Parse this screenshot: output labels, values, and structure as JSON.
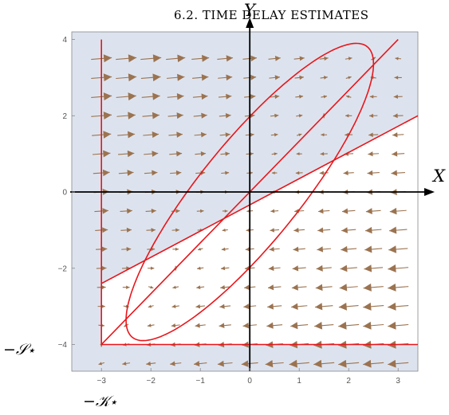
{
  "header": {
    "running_head": "6.2. TIME DELAY ESTIMATES"
  },
  "axes": {
    "x_label": "X",
    "y_label": "Y"
  },
  "labels": {
    "s_star": "−𝒮⋆",
    "k_star": "−𝒦⋆"
  },
  "colors": {
    "region": "#dde3ee",
    "curves": "#e8161b",
    "arrows": "#9b7350",
    "axes": "#000000",
    "frame": "#888888"
  },
  "chart_data": {
    "type": "vector-field",
    "xlim": [
      -3.6,
      3.4
    ],
    "ylim": [
      -4.7,
      4.2
    ],
    "x_ticks": [
      -3,
      -2,
      -1,
      0,
      1,
      2,
      3
    ],
    "y_ticks": [
      -4,
      -2,
      0,
      2,
      4
    ],
    "x_tick_labels": [
      "−3",
      "−2",
      "−1",
      "0",
      "1",
      "2",
      "3"
    ],
    "y_tick_labels": [
      "−4",
      "−2",
      "0",
      "2",
      "4"
    ],
    "boundary_x": -3,
    "boundary_y": -4,
    "diagonal_line": {
      "from": [
        -3,
        -4
      ],
      "to": [
        3,
        4
      ]
    },
    "shallow_line": {
      "from": [
        -3,
        -2.4
      ],
      "to": [
        3.4,
        2
      ]
    },
    "ellipse": {
      "center": [
        0,
        0
      ],
      "semi_major": 4.5,
      "semi_minor": 1.1,
      "angle_deg": 59
    },
    "grid_spacing": 0.5
  }
}
